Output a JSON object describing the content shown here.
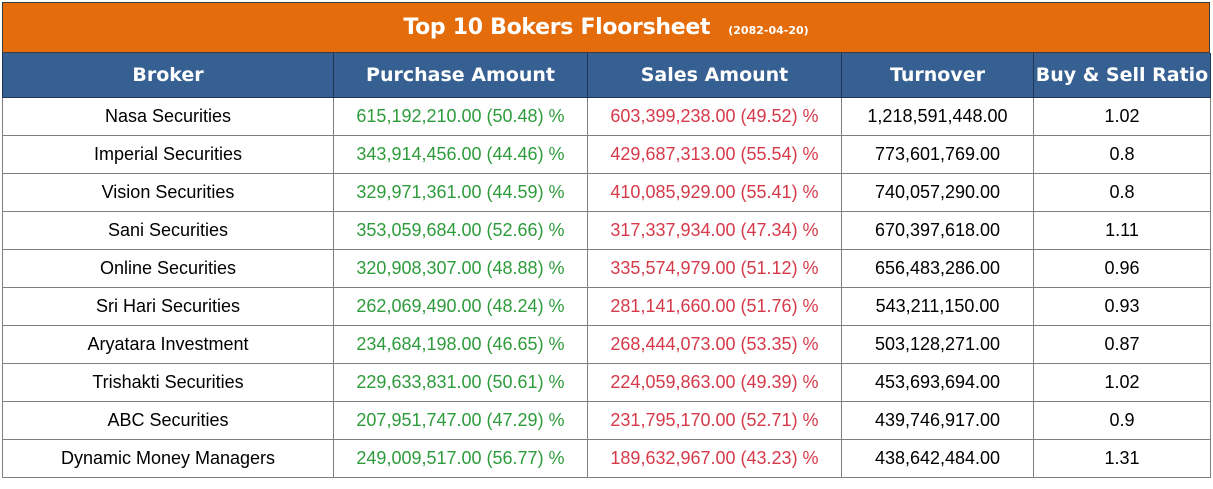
{
  "header": {
    "title": "Top 10 Bokers Floorsheet",
    "date": "(2082-04-20)"
  },
  "colors": {
    "title_bg": "#e46c0a",
    "header_bg": "#366092",
    "purchase_text": "#2e9c3c",
    "sales_text": "#d63a4a"
  },
  "columns": [
    "Broker",
    "Purchase Amount",
    "Sales Amount",
    "Turnover",
    "Buy & Sell Ratio"
  ],
  "rows": [
    {
      "broker": "Nasa Securities",
      "purchase": "615,192,210.00 (50.48) %",
      "sales": "603,399,238.00 (49.52) %",
      "turnover": "1,218,591,448.00",
      "ratio": "1.02"
    },
    {
      "broker": "Imperial Securities",
      "purchase": "343,914,456.00 (44.46) %",
      "sales": "429,687,313.00 (55.54) %",
      "turnover": "773,601,769.00",
      "ratio": "0.8"
    },
    {
      "broker": "Vision Securities",
      "purchase": "329,971,361.00 (44.59) %",
      "sales": "410,085,929.00 (55.41) %",
      "turnover": "740,057,290.00",
      "ratio": "0.8"
    },
    {
      "broker": "Sani Securities",
      "purchase": "353,059,684.00 (52.66) %",
      "sales": "317,337,934.00 (47.34) %",
      "turnover": "670,397,618.00",
      "ratio": "1.11"
    },
    {
      "broker": "Online Securities",
      "purchase": "320,908,307.00 (48.88) %",
      "sales": "335,574,979.00 (51.12) %",
      "turnover": "656,483,286.00",
      "ratio": "0.96"
    },
    {
      "broker": "Sri Hari Securities",
      "purchase": "262,069,490.00 (48.24) %",
      "sales": "281,141,660.00 (51.76) %",
      "turnover": "543,211,150.00",
      "ratio": "0.93"
    },
    {
      "broker": "Aryatara Investment",
      "purchase": "234,684,198.00 (46.65) %",
      "sales": "268,444,073.00 (53.35) %",
      "turnover": "503,128,271.00",
      "ratio": "0.87"
    },
    {
      "broker": "Trishakti Securities",
      "purchase": "229,633,831.00 (50.61) %",
      "sales": "224,059,863.00 (49.39) %",
      "turnover": "453,693,694.00",
      "ratio": "1.02"
    },
    {
      "broker": "ABC Securities",
      "purchase": "207,951,747.00 (47.29) %",
      "sales": "231,795,170.00 (52.71) %",
      "turnover": "439,746,917.00",
      "ratio": "0.9"
    },
    {
      "broker": "Dynamic Money Managers",
      "purchase": "249,009,517.00 (56.77) %",
      "sales": "189,632,967.00 (43.23) %",
      "turnover": "438,642,484.00",
      "ratio": "1.31"
    }
  ]
}
